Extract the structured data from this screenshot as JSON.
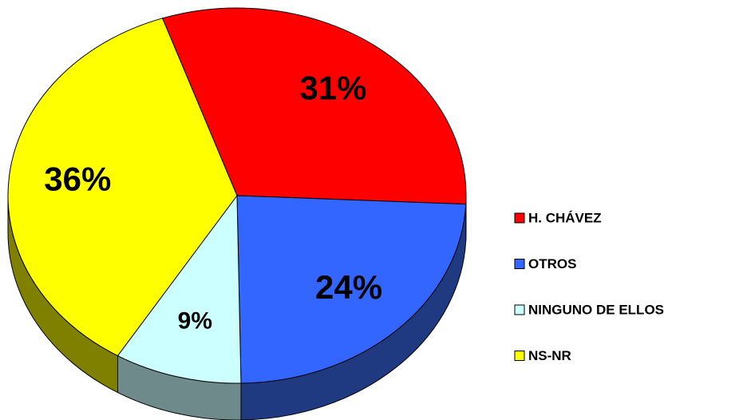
{
  "chart_data": {
    "type": "pie",
    "categories": [
      "H. CHÁVEZ",
      "OTROS",
      "NINGUNO DE ELLOS",
      "NS-NR"
    ],
    "values": [
      31,
      24,
      9,
      36
    ],
    "value_labels": [
      "31%",
      "24%",
      "9%",
      "36%"
    ],
    "colors": [
      "#ff0000",
      "#3366ff",
      "#ccffff",
      "#ffff00"
    ],
    "side_colors": [
      "#800000",
      "#1f3a80",
      "#6e8a8a",
      "#808000"
    ],
    "legend": "right"
  }
}
